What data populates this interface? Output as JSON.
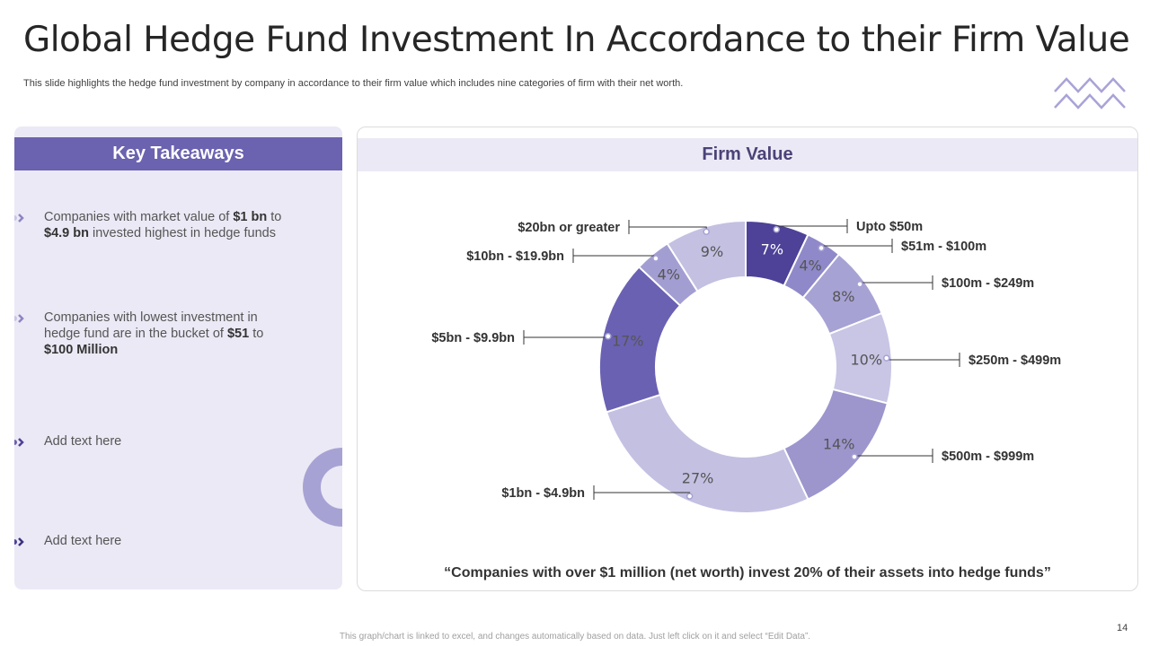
{
  "slide": {
    "title": "Global Hedge Fund Investment In Accordance  to their Firm Value",
    "subtitle": "This slide highlights the hedge fund investment by company in accordance to their firm value which includes nine categories of firm with their net worth.",
    "page_number": "14",
    "footer": "This graph/chart is linked to excel, and changes automatically based on data. Just left click on it and select “Edit Data”."
  },
  "key_takeaways": {
    "heading": "Key Takeaways",
    "items": [
      {
        "pre": "Companies with market value of ",
        "b1": "$1 bn",
        "mid": " to ",
        "b2": "$4.9 bn",
        "post": " invested highest in hedge funds"
      },
      {
        "pre": "Companies with lowest investment in hedge fund are in the bucket of ",
        "b1": "$51",
        "mid": " to ",
        "b2": "$100 Million",
        "post": ""
      },
      {
        "text": "Add text here"
      },
      {
        "text": "Add text here"
      }
    ]
  },
  "firm_value": {
    "heading": "Firm Value",
    "quote": "“Companies with over $1 million (net worth) invest 20% of their assets  into hedge funds”"
  },
  "colors": {
    "accent": "#6b62b0",
    "panel_bg": "#ebe9f5",
    "slices": [
      "#4d4298",
      "#8f89c9",
      "#a7a2d4",
      "#c8c5e5",
      "#9c96cd",
      "#c3c0e2",
      "#6a61b3",
      "#a39ed2",
      "#c3c0e2"
    ]
  },
  "chart_data": {
    "type": "pie",
    "subtype": "donut",
    "title": "Firm Value",
    "categories": [
      "Upto $50m",
      "$51m - $100m",
      "$100m - $249m",
      "$250m - $499m",
      "$500m - $999m",
      "$1bn - $4.9bn",
      "$5bn - $9.9bn",
      "$10bn - $19.9bn",
      "$20bn or greater"
    ],
    "values": [
      7,
      4,
      8,
      10,
      14,
      27,
      17,
      4,
      9
    ],
    "value_labels": [
      "7%",
      "4%",
      "8%",
      "10%",
      "14%",
      "27%",
      "17%",
      "4%",
      "9%"
    ],
    "unit": "%"
  }
}
